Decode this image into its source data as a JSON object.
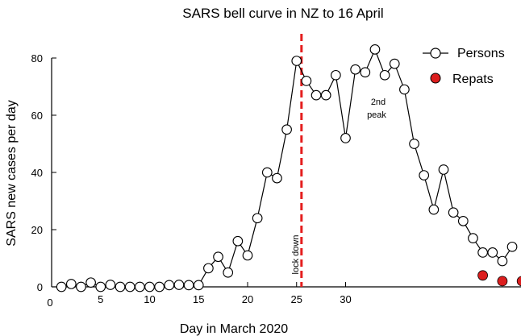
{
  "chart_data": {
    "type": "scatter",
    "title": "SARS bell curve in NZ to 16 April",
    "xlabel": "Day in March 2020",
    "ylabel": "SARS new cases per day",
    "xlim": [
      0,
      48
    ],
    "ylim": [
      0,
      80
    ],
    "x_ticks": [
      "0",
      "5",
      "10",
      "15",
      "20",
      "25",
      "30"
    ],
    "y_ticks": [
      "0",
      "20",
      "40",
      "60",
      "80"
    ],
    "legend": {
      "placement": "top-right"
    },
    "series": [
      {
        "name": "Persons",
        "style": "line-with-open-circles",
        "color": "#000000",
        "x": [
          1,
          2,
          3,
          4,
          5,
          6,
          7,
          8,
          9,
          10,
          11,
          12,
          13,
          14,
          15,
          16,
          17,
          18,
          19,
          20,
          21,
          22,
          23,
          24,
          25,
          26,
          27,
          28,
          29,
          30,
          31,
          32,
          33,
          34,
          35,
          36,
          37,
          38,
          39,
          40,
          41,
          42,
          43,
          44,
          45,
          46,
          47
        ],
        "y": [
          0,
          1,
          0,
          1.5,
          0,
          0.7,
          0,
          0,
          0,
          0,
          0,
          0.6,
          0.7,
          0.6,
          0.6,
          6.5,
          10.5,
          5,
          16,
          11,
          24,
          40,
          38,
          55,
          79,
          72,
          67,
          67,
          74,
          52,
          76,
          75,
          83,
          74,
          78,
          69,
          50,
          39,
          27,
          41,
          26,
          23,
          17,
          12,
          12,
          9,
          14
        ]
      },
      {
        "name": "Repats",
        "style": "filled-circles",
        "color": "#dc1e1e",
        "x": [
          44,
          46,
          48
        ],
        "y": [
          4,
          2,
          2
        ]
      }
    ],
    "vlines": [
      {
        "x": 25.5,
        "color": "#e41e1e",
        "style": "dashed",
        "label": "lock down"
      }
    ],
    "annotations": [
      {
        "text_lines": [
          "2nd",
          "peak"
        ],
        "x": 33.5,
        "y": 62
      }
    ]
  }
}
